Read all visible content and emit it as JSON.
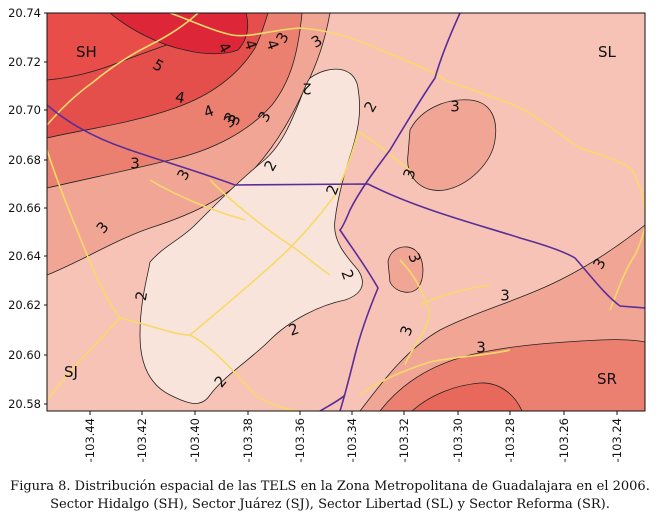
{
  "map": {
    "y_ticks": [
      "20.74",
      "20.72",
      "20.70",
      "20.68",
      "20.66",
      "20.64",
      "20.62",
      "20.60",
      "20.58"
    ],
    "x_ticks": [
      "-103.44",
      "-103.42",
      "-103.40",
      "-103.38",
      "-103.36",
      "-103.34",
      "-103.32",
      "-103.30",
      "-103.28",
      "-103.26",
      "-103.24"
    ],
    "sectors": {
      "sh": "SH",
      "sl": "SL",
      "sj": "SJ",
      "sr": "SR"
    },
    "contour_labels": [
      "5",
      "4",
      "4",
      "4",
      "4",
      "4",
      "3",
      "3",
      "3",
      "3",
      "3",
      "3",
      "3",
      "3",
      "3",
      "3",
      "3",
      "3",
      "3",
      "3",
      "3",
      "3",
      "2",
      "2",
      "2",
      "2",
      "2",
      "2",
      "2",
      "2"
    ],
    "colors": {
      "level_2": "#f9e4dc",
      "level_3": "#f6c3b6",
      "level_3b": "#f1a595",
      "level_4": "#ec8070",
      "level_5": "#e44e4b",
      "level_6": "#dd2638",
      "roads": "#f7d96a",
      "sector_boundary": "#5a2d99"
    }
  },
  "caption": {
    "line1": "Figura 8. Distribución espacial de las TELS en la Zona Metropolitana de Guadalajara en el 2006.",
    "line2": "Sector Hidalgo (SH), Sector Juárez (SJ), Sector Libertad (SL) y Sector Reforma (SR)."
  }
}
